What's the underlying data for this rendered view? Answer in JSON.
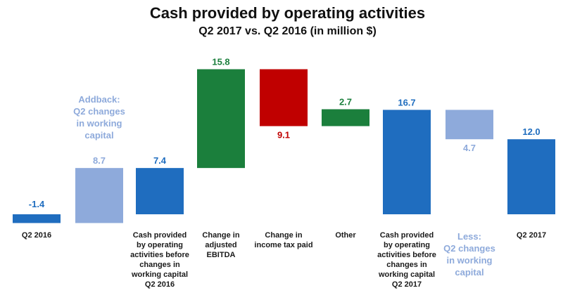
{
  "title": "Cash provided by operating activities",
  "subtitle": "Q2 2017 vs. Q2 2016 (in million $)",
  "colors": {
    "total": "#1F6DBF",
    "adjust": "#8EAADB",
    "increase": "#1B7F3C",
    "decrease": "#C00000",
    "adjust_text": "#8EAADB"
  },
  "chart_data": {
    "type": "bar",
    "variant": "waterfall",
    "title": "Cash provided by operating activities",
    "subtitle": "Q2 2017 vs. Q2 2016 (in million $)",
    "categories": [
      "Q2 2016",
      "",
      "Cash provided by operating activities before changes in working capital Q2 2016",
      "Change in adjusted EBITDA",
      "Change in income tax paid",
      "Other",
      "Cash provided by operating activities before changes in working capital Q2 2017",
      "",
      "Q2 2017"
    ],
    "labels": [
      "-1.4",
      "8.7",
      "7.4",
      "15.8",
      "9.1",
      "2.7",
      "16.7",
      "4.7",
      "12.0"
    ],
    "bars": [
      {
        "kind": "total",
        "start": 0,
        "end": -1.4,
        "label": "-1.4"
      },
      {
        "kind": "adjust",
        "start": -1.4,
        "end": 7.4,
        "label": "8.7"
      },
      {
        "kind": "total",
        "start": 0,
        "end": 7.4,
        "label": "7.4"
      },
      {
        "kind": "increase",
        "start": 7.4,
        "end": 23.2,
        "label": "15.8"
      },
      {
        "kind": "decrease",
        "start": 23.2,
        "end": 14.1,
        "label": "9.1"
      },
      {
        "kind": "increase",
        "start": 14.1,
        "end": 16.8,
        "label": "2.7"
      },
      {
        "kind": "total",
        "start": 0,
        "end": 16.7,
        "label": "16.7"
      },
      {
        "kind": "adjust",
        "start": 16.7,
        "end": 12.0,
        "label": "4.7"
      },
      {
        "kind": "total",
        "start": 0,
        "end": 12.0,
        "label": "12.0"
      }
    ],
    "annotations": [
      "Addback: Q2 changes in working capital",
      "Less: Q2 changes in working capital"
    ],
    "ylim": [
      -2,
      24
    ],
    "grid": false,
    "legend": "none"
  },
  "category_labels": {
    "c0": [
      "Q2 2016"
    ],
    "c2": [
      "Cash provided",
      "by operating",
      "activities before",
      "changes in",
      "working capital",
      "Q2 2016"
    ],
    "c3": [
      "Change in",
      "adjusted",
      "EBITDA"
    ],
    "c4": [
      "Change in",
      "income tax paid"
    ],
    "c5": [
      "Other"
    ],
    "c6": [
      "Cash provided",
      "by operating",
      "activities before",
      "changes in",
      "working capital",
      "Q2 2017"
    ],
    "c7": [
      "Less:",
      "Q2 changes",
      "in working",
      "capital"
    ],
    "c8": [
      "Q2 2017"
    ]
  },
  "addback_note": [
    "Addback:",
    "Q2 changes",
    "in working",
    "capital"
  ]
}
